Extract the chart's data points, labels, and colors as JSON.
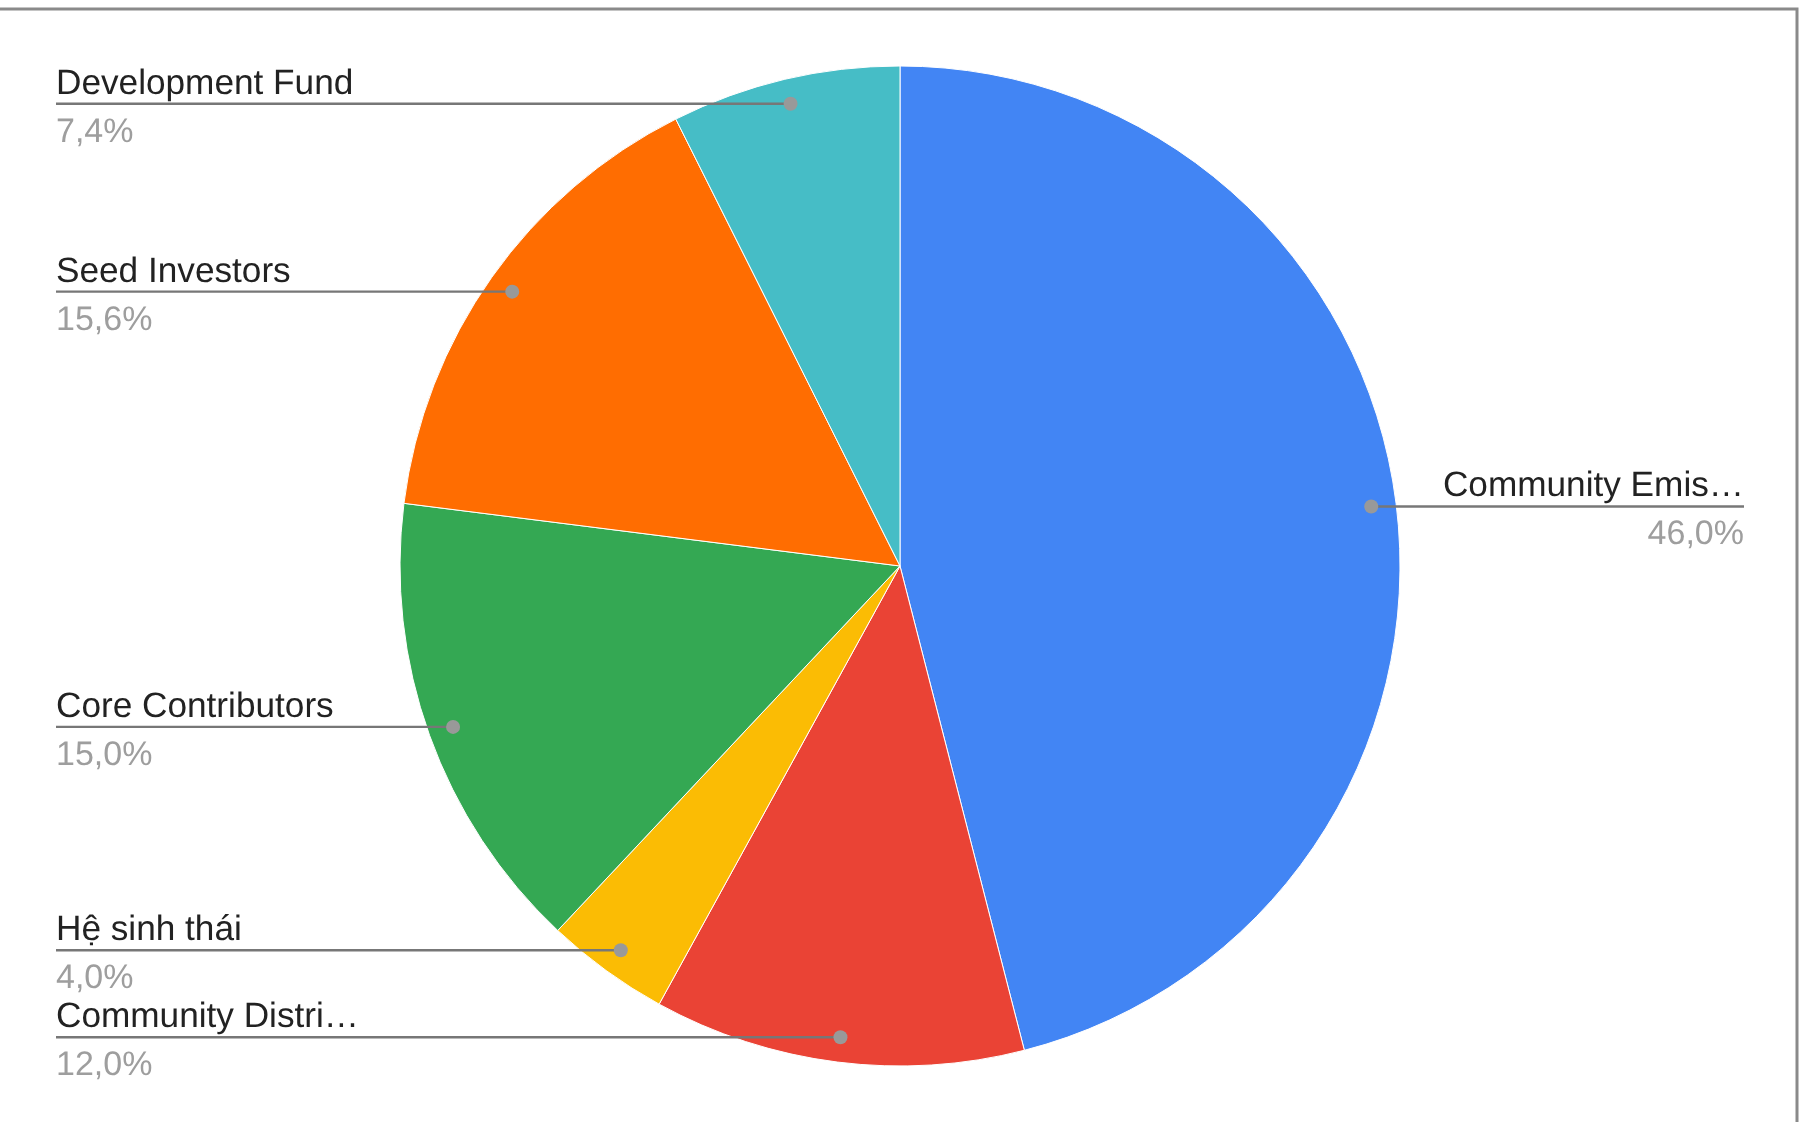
{
  "chart_data": {
    "type": "pie",
    "categories": [
      "Community Emis…",
      "Community Distri…",
      "Hệ sinh thái",
      "Core Contributors",
      "Seed Investors",
      "Development Fund"
    ],
    "values": [
      46.0,
      12.0,
      4.0,
      15.0,
      15.6,
      7.4
    ],
    "colors": [
      "#4285f4",
      "#ea4335",
      "#fbbc04",
      "#34a853",
      "#ff6d01",
      "#46bdc6"
    ],
    "value_labels": [
      "46,0%",
      "12,0%",
      "4,0%",
      "15,0%",
      "15,6%",
      "7,4%"
    ]
  }
}
